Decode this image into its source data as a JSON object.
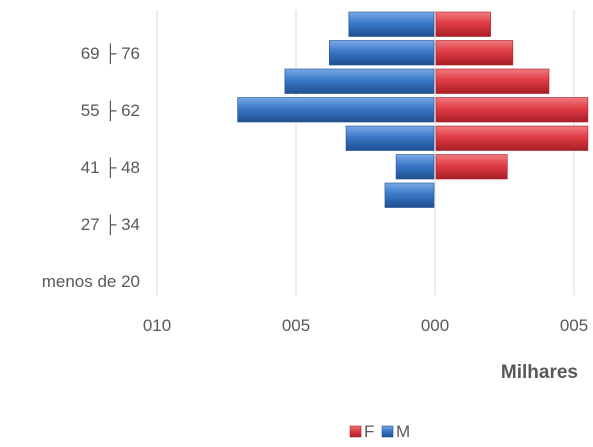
{
  "chart_data": {
    "type": "bar",
    "orientation": "horizontal",
    "xlabel": "Milhares",
    "ylabel": "",
    "title": "",
    "categories": [
      "menos de 20",
      "",
      "27 ├ 34",
      "",
      "41 ├ 48",
      "",
      "55 ├ 62",
      "",
      "69 ├ 76",
      ""
    ],
    "xticks": [
      {
        "value": -10,
        "label": "010"
      },
      {
        "value": -5,
        "label": "005"
      },
      {
        "value": 0,
        "label": "000"
      },
      {
        "value": 5,
        "label": "005"
      }
    ],
    "xlim": [
      -10,
      5.5
    ],
    "series": [
      {
        "name": "F",
        "color": "#e03c45",
        "values": [
          0,
          0,
          0,
          0,
          2.6,
          5.5,
          5.5,
          4.1,
          2.8,
          2.0
        ]
      },
      {
        "name": "M",
        "color": "#3a78c8",
        "values": [
          0,
          0,
          0,
          1.8,
          1.4,
          3.2,
          7.1,
          5.4,
          3.8,
          3.1
        ]
      }
    ],
    "grid": true,
    "legend_position": "bottom"
  }
}
